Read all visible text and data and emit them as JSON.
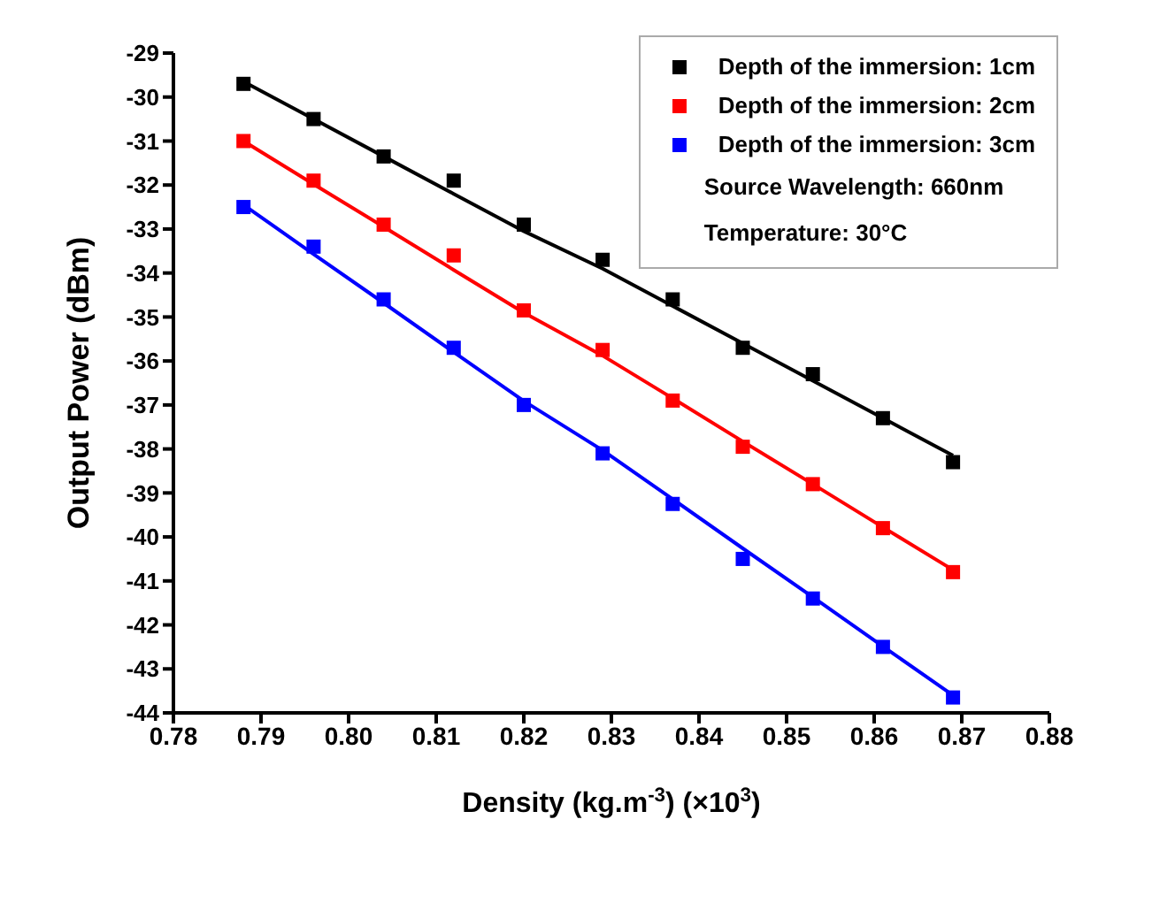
{
  "chart_data": {
    "type": "scatter",
    "xlabel": "Density (kg.m$^{-3}$)  (×10$^{3}$)",
    "ylabel": "Output Power (dBm)",
    "x": [
      0.788,
      0.796,
      0.804,
      0.812,
      0.82,
      0.829,
      0.837,
      0.845,
      0.853,
      0.861,
      0.869
    ],
    "series": [
      {
        "name": "Depth of the immersion: 1cm",
        "color": "#000000",
        "values": [
          -29.7,
          -30.5,
          -31.35,
          -31.9,
          -32.9,
          -33.7,
          -34.6,
          -35.7,
          -36.3,
          -37.3,
          -38.3
        ]
      },
      {
        "name": "Depth of the immersion: 2cm",
        "color": "#ff0000",
        "values": [
          -31.0,
          -31.9,
          -32.9,
          -33.6,
          -34.85,
          -35.75,
          -36.9,
          -37.95,
          -38.8,
          -39.8,
          -40.8
        ]
      },
      {
        "name": "Depth of the immersion: 3cm",
        "color": "#0000ff",
        "values": [
          -32.5,
          -33.4,
          -34.6,
          -35.7,
          -37.0,
          -38.1,
          -39.25,
          -40.5,
          -41.4,
          -42.5,
          -43.65
        ]
      },
      {
        "type": "line",
        "marker": "none",
        "color": "#000000",
        "values": [
          -29.65,
          -30.5,
          -31.35,
          -32.2,
          -33.05,
          -33.9,
          -34.75,
          -35.6,
          -36.45,
          -37.3,
          -38.15
        ]
      },
      {
        "type": "line",
        "marker": "none",
        "color": "#ff0000",
        "values": [
          -31.0,
          -31.98,
          -32.95,
          -33.93,
          -34.9,
          -35.88,
          -36.85,
          -37.83,
          -38.8,
          -39.78,
          -40.75
        ]
      },
      {
        "type": "line",
        "marker": "none",
        "color": "#0000ff",
        "values": [
          -32.45,
          -33.57,
          -34.68,
          -35.8,
          -36.91,
          -38.03,
          -39.14,
          -40.26,
          -41.37,
          -42.49,
          -43.6
        ]
      }
    ],
    "annotations": [
      "Source Wavelength: 660nm",
      "Temperature: 30°C"
    ],
    "xlim": [
      0.78,
      0.88
    ],
    "xticks": [
      0.78,
      0.79,
      {
        "value": 0.8,
        "label": "0.80"
      },
      0.81,
      0.82,
      0.83,
      0.84,
      0.85,
      0.86,
      0.87,
      0.88
    ],
    "ylim": [
      -44,
      -29
    ],
    "yticks": [
      -44,
      -43,
      -42,
      -41,
      -40,
      -39,
      -38,
      -37,
      -36,
      -35,
      -34,
      -33,
      -32,
      -31,
      -30,
      -29
    ],
    "marker": "square",
    "line_style": "solid",
    "legend": "top right"
  }
}
